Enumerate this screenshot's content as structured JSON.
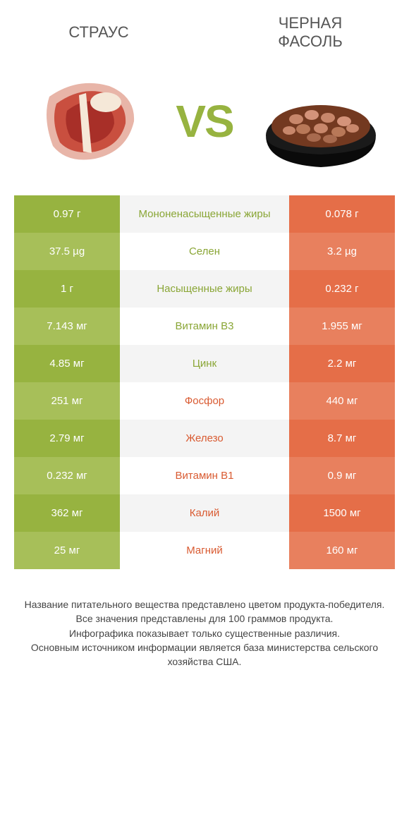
{
  "header": {
    "left_title": "СТРАУС",
    "right_title": "ЧЕРНАЯ ФАСОЛЬ",
    "vs": "VS"
  },
  "colors": {
    "green_dark": "#97b340",
    "green_light": "#a7bf59",
    "orange_dark": "#e56e48",
    "orange_light": "#e8805e",
    "mid_alt": "#f4f4f4",
    "mid_base": "#ffffff",
    "text_green": "#8aa636",
    "text_orange": "#d95b32",
    "title_grey": "#555555",
    "footer_grey": "#444444"
  },
  "rows": [
    {
      "left": "0.97 г",
      "mid": "Мононенасыщенные жиры",
      "right": "0.078 г",
      "winner": "left"
    },
    {
      "left": "37.5 µg",
      "mid": "Селен",
      "right": "3.2 µg",
      "winner": "left"
    },
    {
      "left": "1 г",
      "mid": "Насыщенные жиры",
      "right": "0.232 г",
      "winner": "left"
    },
    {
      "left": "7.143 мг",
      "mid": "Витамин B3",
      "right": "1.955 мг",
      "winner": "left"
    },
    {
      "left": "4.85 мг",
      "mid": "Цинк",
      "right": "2.2 мг",
      "winner": "left"
    },
    {
      "left": "251 мг",
      "mid": "Фосфор",
      "right": "440 мг",
      "winner": "right"
    },
    {
      "left": "2.79 мг",
      "mid": "Железо",
      "right": "8.7 мг",
      "winner": "right"
    },
    {
      "left": "0.232 мг",
      "mid": "Витамин B1",
      "right": "0.9 мг",
      "winner": "right"
    },
    {
      "left": "362 мг",
      "mid": "Калий",
      "right": "1500 мг",
      "winner": "right"
    },
    {
      "left": "25 мг",
      "mid": "Магний",
      "right": "160 мг",
      "winner": "right"
    }
  ],
  "footer": {
    "line1": "Название питательного вещества представлено цветом продукта-победителя.",
    "line2": "Все значения представлены для 100 граммов продукта.",
    "line3": "Инфографика показывает только существенные различия.",
    "line4": "Основным источником информации является база министерства сельского хозяйства США."
  }
}
